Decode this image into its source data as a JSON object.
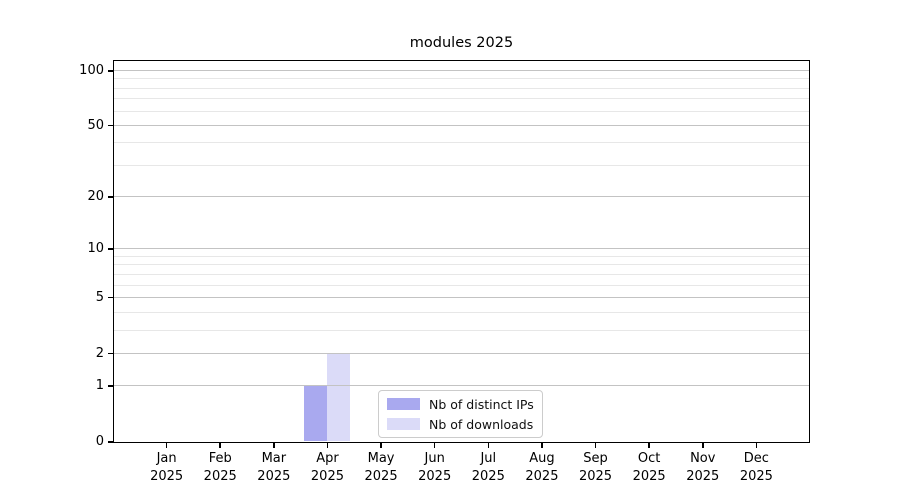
{
  "chart_data": {
    "type": "bar",
    "title": "modules 2025",
    "categories": [
      "Jan",
      "Feb",
      "Mar",
      "Apr",
      "May",
      "Jun",
      "Jul",
      "Aug",
      "Sep",
      "Oct",
      "Nov",
      "Dec"
    ],
    "year_label": "2025",
    "series": [
      {
        "name": "Nb of distinct IPs",
        "color": "#a9a9ef",
        "values": [
          0,
          0,
          0,
          1,
          0,
          0,
          0,
          0,
          0,
          0,
          0,
          0
        ]
      },
      {
        "name": "Nb of downloads",
        "color": "#dbdbf8",
        "values": [
          0,
          0,
          0,
          2,
          0,
          0,
          0,
          0,
          0,
          0,
          0,
          0
        ]
      }
    ],
    "yscale": "log1p",
    "ylim": [
      0,
      112
    ],
    "y_major_ticks": [
      0,
      1,
      2,
      5,
      10,
      20,
      50,
      100
    ],
    "y_minor_ticks": [
      3,
      4,
      6,
      7,
      8,
      9,
      30,
      40,
      60,
      70,
      80,
      90
    ],
    "grid": true,
    "legend_position": "lower center",
    "colors": {
      "spine": "#000000",
      "grid_major": "#c3c3c3",
      "grid_minor": "#e7e7e7",
      "background": "#ffffff"
    }
  }
}
